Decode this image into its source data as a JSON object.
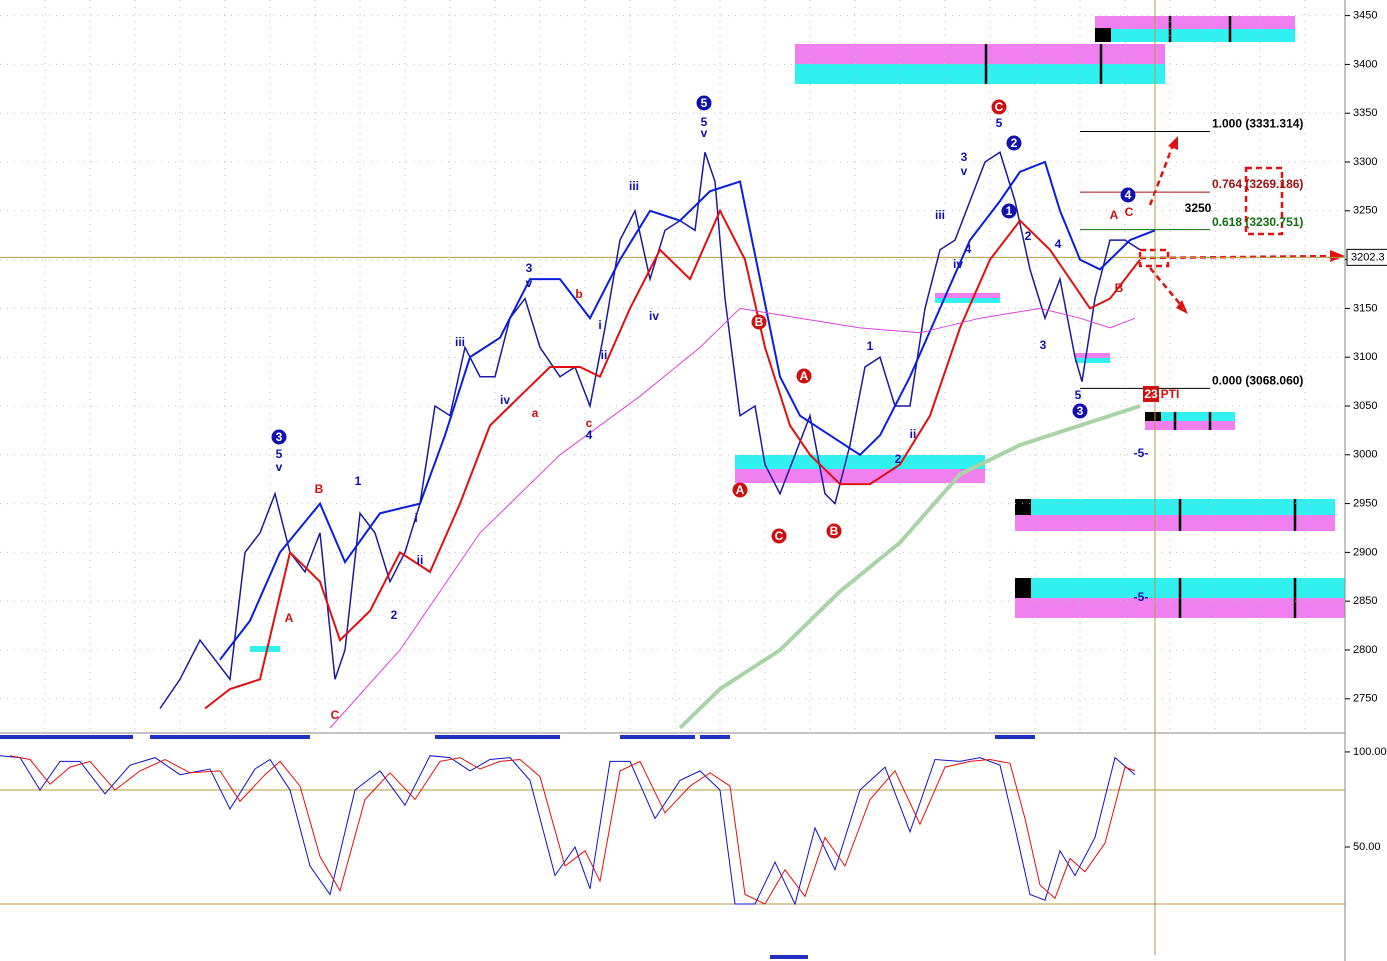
{
  "chart_data": [
    {
      "type": "line",
      "xlim": [
        0,
        269
      ],
      "ylim": [
        2718,
        3466
      ],
      "yticks": [
        2750,
        2800,
        2850,
        2900,
        2950,
        3000,
        3050,
        3100,
        3150,
        3200,
        3250,
        3300,
        3350,
        3400,
        3450
      ],
      "grid": true,
      "last_price": {
        "value": 3202.3,
        "label": "3202.3"
      },
      "fib_levels": [
        {
          "value": 3331.314,
          "label": "1.000 (3331.314)",
          "color": "#000000"
        },
        {
          "value": 3269.186,
          "label": "0.764 (3269.186)",
          "color": "#a01010"
        },
        {
          "value": 3230.751,
          "label": "0.618 (3230.751)",
          "color": "#107010"
        },
        {
          "value": 3068.06,
          "label": "0.000 (3068.060)",
          "color": "#000000"
        }
      ],
      "annotations": [
        "3",
        "5",
        "v",
        "B",
        "A",
        "C",
        "1",
        "2",
        "i",
        "ii",
        "iii",
        "iv",
        "3",
        "v",
        "a",
        "b",
        "c",
        "4",
        "i",
        "ii",
        "iii",
        "iv",
        "5",
        "5",
        "v",
        "B",
        "A",
        "A",
        "C",
        "B",
        "1",
        "2",
        "ii",
        "iii",
        "v",
        "3",
        "iv",
        "4",
        "C",
        "5",
        "2",
        "1",
        "2",
        "4",
        "3",
        "5",
        "3",
        "4",
        "A",
        "C",
        "B",
        "-5-",
        "-5-",
        "3250",
        "23",
        "PTI"
      ],
      "series": [
        {
          "color": "#1a1aa0",
          "width": 1.5,
          "x": [
            32,
            36,
            40,
            43,
            46,
            49,
            52,
            55,
            58,
            61,
            64,
            67,
            69,
            72,
            75,
            78,
            81,
            84,
            87,
            90,
            93,
            96,
            99,
            102,
            105,
            108,
            112,
            115,
            118,
            121,
            124,
            127,
            130,
            133,
            136,
            139,
            141,
            143,
            145,
            148,
            151,
            153,
            156,
            159,
            162,
            165,
            167,
            170,
            173,
            176,
            179,
            182,
            185,
            188,
            191,
            194,
            197,
            200,
            203,
            206,
            209,
            212,
            215,
            216.4,
            219,
            222,
            225,
            228
          ],
          "values": [
            2740,
            2770,
            2810,
            2790,
            2770,
            2900,
            2920,
            2960,
            2900,
            2880,
            2920,
            2770,
            2800,
            2940,
            2920,
            2870,
            2900,
            2950,
            3050,
            3040,
            3110,
            3080,
            3080,
            3140,
            3160,
            3110,
            3080,
            3090,
            3050,
            3130,
            3220,
            3250,
            3180,
            3230,
            3240,
            3230,
            3310,
            3280,
            3160,
            3040,
            3050,
            2990,
            2960,
            3000,
            3040,
            2960,
            2950,
            3010,
            3090,
            3100,
            3050,
            3050,
            3150,
            3210,
            3220,
            3260,
            3300,
            3310,
            3260,
            3190,
            3140,
            3180,
            3100,
            3075,
            3160,
            3220,
            3220,
            3210
          ]
        },
        {
          "color": "#0a1ee0",
          "width": 2,
          "x": [
            44,
            50,
            56,
            64,
            69,
            76,
            84,
            89,
            94,
            100,
            106,
            112,
            118,
            124,
            130,
            136,
            142,
            148,
            152,
            156,
            160,
            166,
            172,
            176,
            182,
            188,
            194,
            200,
            204,
            209,
            212,
            216,
            220,
            226,
            231
          ],
          "values": [
            2790,
            2830,
            2900,
            2950,
            2890,
            2940,
            2950,
            3020,
            3100,
            3120,
            3180,
            3180,
            3140,
            3200,
            3250,
            3240,
            3270,
            3280,
            3180,
            3080,
            3040,
            3020,
            3000,
            3020,
            3080,
            3150,
            3220,
            3260,
            3290,
            3300,
            3250,
            3200,
            3190,
            3220,
            3230
          ]
        },
        {
          "color": "#e01010",
          "width": 2,
          "x": [
            41,
            46,
            52,
            58,
            64,
            68,
            74,
            80,
            86,
            92,
            98,
            104,
            110,
            116,
            120,
            126,
            132,
            138,
            144,
            149,
            153,
            158,
            162,
            168,
            174,
            180,
            186,
            192,
            198,
            204,
            210,
            214,
            218,
            222,
            228
          ],
          "values": [
            2740,
            2760,
            2770,
            2900,
            2870,
            2810,
            2840,
            2900,
            2880,
            2950,
            3030,
            3060,
            3090,
            3090,
            3080,
            3150,
            3210,
            3180,
            3250,
            3200,
            3110,
            3030,
            3000,
            2970,
            2970,
            2990,
            3040,
            3130,
            3200,
            3240,
            3210,
            3180,
            3150,
            3160,
            3200
          ]
        },
        {
          "color": "#e040e0",
          "width": 1,
          "x": [
            66,
            80,
            96,
            112,
            128,
            140,
            148,
            160,
            172,
            184,
            196,
            208,
            216,
            222,
            227
          ],
          "values": [
            2720,
            2800,
            2920,
            3000,
            3060,
            3110,
            3150,
            3140,
            3130,
            3125,
            3140,
            3150,
            3140,
            3130,
            3140
          ]
        },
        {
          "color": "#a8d4a8",
          "width": 4,
          "x": [
            136,
            144,
            156,
            168,
            180,
            192,
            204,
            216,
            228
          ],
          "values": [
            2720,
            2760,
            2800,
            2860,
            2910,
            2980,
            3010,
            3030,
            3050
          ]
        }
      ]
    },
    {
      "type": "line",
      "xlim": [
        0,
        269
      ],
      "ylim": [
        -6.8,
        108.9
      ],
      "yticks": [
        {
          "value": 100,
          "label": "100.00"
        },
        {
          "value": 50,
          "label": "50.00"
        }
      ],
      "levels": [
        80,
        20
      ],
      "series": [
        {
          "color": "#1010d0",
          "x": [
            0,
            4,
            8,
            12,
            16,
            21,
            26,
            31,
            36,
            42,
            46,
            51,
            54,
            58,
            62,
            66,
            71,
            76,
            81,
            86,
            90,
            94,
            98,
            102,
            106,
            111,
            115,
            118,
            122,
            126,
            131,
            136,
            140,
            144,
            147,
            151,
            155,
            159,
            163,
            167,
            172,
            177,
            182,
            187,
            192,
            196,
            200,
            203,
            206,
            209,
            212,
            215,
            219,
            223,
            227
          ],
          "values": [
            98,
            97,
            80,
            95,
            95,
            78,
            93,
            97,
            88,
            91,
            70,
            91,
            96,
            80,
            40,
            25,
            80,
            90,
            72,
            98,
            97,
            90,
            96,
            97,
            85,
            35,
            50,
            28,
            95,
            95,
            65,
            85,
            90,
            80,
            20,
            20,
            42,
            20,
            60,
            38,
            80,
            92,
            58,
            96,
            95,
            97,
            93,
            60,
            25,
            22,
            48,
            35,
            55,
            97,
            88
          ]
        },
        {
          "color": "#e01010",
          "x": [
            2,
            6,
            10,
            14,
            18,
            23,
            28,
            33,
            38,
            44,
            48,
            53,
            56,
            60,
            64,
            68,
            73,
            78,
            83,
            88,
            92,
            96,
            100,
            104,
            108,
            113,
            117,
            120,
            124,
            128,
            133,
            138,
            142,
            146,
            149,
            153,
            157,
            161,
            165,
            169,
            174,
            179,
            184,
            189,
            194,
            198,
            202,
            205,
            208,
            211,
            214,
            217,
            221,
            225,
            227
          ],
          "values": [
            98,
            96,
            83,
            92,
            95,
            80,
            90,
            96,
            89,
            90,
            74,
            88,
            95,
            82,
            45,
            27,
            75,
            89,
            75,
            95,
            97,
            91,
            95,
            96,
            87,
            40,
            48,
            32,
            90,
            95,
            68,
            82,
            89,
            82,
            25,
            20,
            38,
            24,
            55,
            40,
            75,
            90,
            62,
            92,
            95,
            96,
            94,
            65,
            30,
            23,
            44,
            37,
            52,
            92,
            90
          ]
        }
      ]
    }
  ]
}
